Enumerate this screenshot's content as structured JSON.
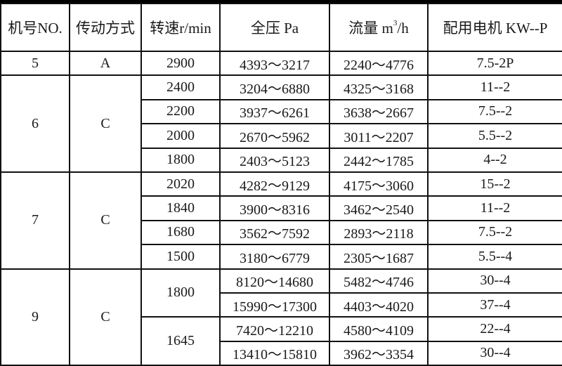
{
  "header": {
    "no": "机号NO.",
    "drive": "传动方式",
    "speed": "转速r/min",
    "pressure": "全压 Pa",
    "flow_prefix": "流量 m",
    "flow_sup": "3",
    "flow_suffix": "/h",
    "motor": "配用电机 KW--P"
  },
  "groups": [
    {
      "no": "5",
      "drive": "A",
      "speeds": [
        {
          "speed": "2900",
          "rows": [
            {
              "pressure": "4393～3217",
              "flow": "2240～4776",
              "motor": "7.5-2P"
            }
          ]
        }
      ]
    },
    {
      "no": "6",
      "drive": "C",
      "speeds": [
        {
          "speed": "2400",
          "rows": [
            {
              "pressure": "3204～6880",
              "flow": "4325～3168",
              "motor": "11--2"
            }
          ]
        },
        {
          "speed": "2200",
          "rows": [
            {
              "pressure": "3937～6261",
              "flow": "3638～2667",
              "motor": "7.5--2"
            }
          ]
        },
        {
          "speed": "2000",
          "rows": [
            {
              "pressure": "2670～5962",
              "flow": "3011～2207",
              "motor": "5.5--2"
            }
          ]
        },
        {
          "speed": "1800",
          "rows": [
            {
              "pressure": "2403～5123",
              "flow": "2442～1785",
              "motor": "4--2"
            }
          ]
        }
      ]
    },
    {
      "no": "7",
      "drive": "C",
      "speeds": [
        {
          "speed": "2020",
          "rows": [
            {
              "pressure": "4282～9129",
              "flow": "4175～3060",
              "motor": "15--2"
            }
          ]
        },
        {
          "speed": "1840",
          "rows": [
            {
              "pressure": "3900～8316",
              "flow": "3462～2540",
              "motor": "11--2"
            }
          ]
        },
        {
          "speed": "1680",
          "rows": [
            {
              "pressure": "3562～7592",
              "flow": "2893～2118",
              "motor": "7.5--2"
            }
          ]
        },
        {
          "speed": "1500",
          "rows": [
            {
              "pressure": "3180～6779",
              "flow": "2305～1687",
              "motor": "5.5--4"
            }
          ]
        }
      ]
    },
    {
      "no": "9",
      "drive": "C",
      "speeds": [
        {
          "speed": "1800",
          "rows": [
            {
              "pressure": "8120～14680",
              "flow": "5482～4746",
              "motor": "30--4"
            },
            {
              "pressure": "15990～17300",
              "flow": "4403～4020",
              "motor": "37--4"
            }
          ]
        },
        {
          "speed": "1645",
          "rows": [
            {
              "pressure": "7420～12210",
              "flow": "4580～4109",
              "motor": "22--4"
            },
            {
              "pressure": "13410～15810",
              "flow": "3962～3354",
              "motor": "30--4"
            }
          ]
        }
      ]
    }
  ]
}
